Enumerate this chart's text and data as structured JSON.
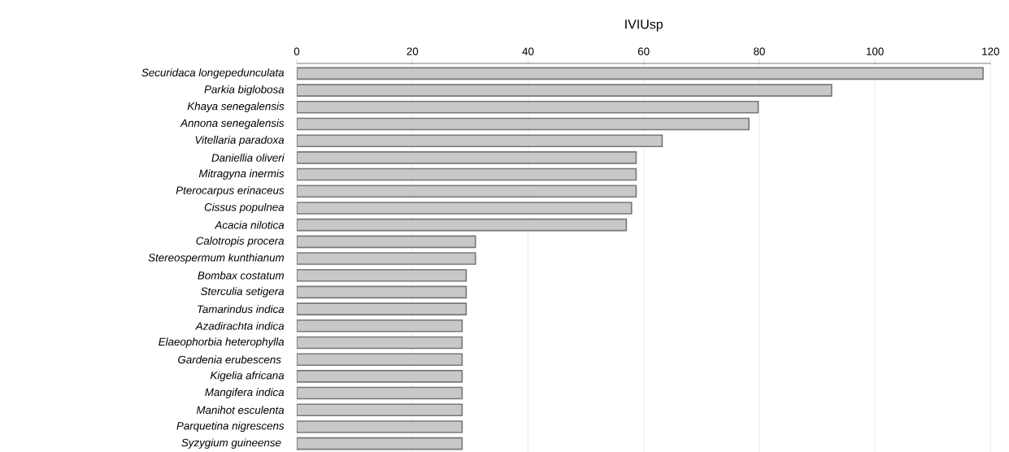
{
  "chart_data": {
    "type": "bar",
    "orientation": "horizontal",
    "xlabel": "IVIUsp",
    "categories": [
      "Securidaca longepedunculata",
      "Parkia biglobosa",
      "Khaya senegalensis",
      "Annona senegalensis",
      "Vitellaria paradoxa",
      "Daniellia oliveri",
      "Mitragyna inermis",
      "Pterocarpus erinaceus",
      "Cissus populnea",
      "Acacia nilotica",
      "Calotropis procera",
      "Stereospermum kunthianum",
      "Bombax costatum",
      "Sterculia setigera",
      "Tamarindus indica",
      "Azadirachta indica",
      "Elaeophorbia heterophylla",
      "Gardenia erubescens ",
      "Kigelia africana",
      "Mangifera indica",
      "Manihot esculenta",
      "Parquetina nigrescens",
      "Syzygium guineense "
    ],
    "values": [
      118.7,
      92.5,
      79.8,
      78.2,
      63.2,
      58.7,
      58.7,
      58.7,
      57.9,
      57.0,
      30.9,
      30.9,
      29.3,
      29.3,
      29.3,
      28.6,
      28.6,
      28.6,
      28.6,
      28.6,
      28.6,
      28.6,
      28.6
    ],
    "color": "#c8c8c8",
    "xlim": [
      0,
      120
    ],
    "xticks": [
      0,
      20,
      40,
      60,
      80,
      100,
      120
    ],
    "grid": "x"
  }
}
